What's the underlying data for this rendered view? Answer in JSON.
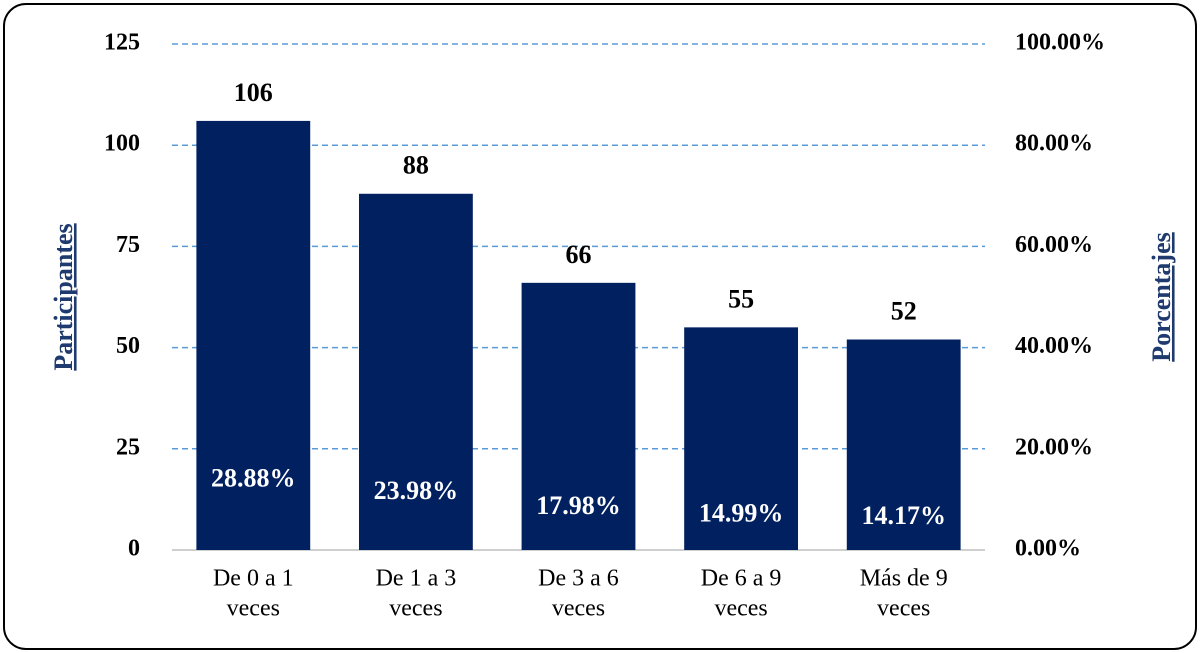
{
  "chart_data": {
    "type": "bar",
    "categories": [
      [
        "De 0 a 1",
        "veces"
      ],
      [
        "De 1 a 3",
        "veces"
      ],
      [
        "De 3 a 6",
        "veces"
      ],
      [
        "De 6 a 9",
        "veces"
      ],
      [
        "Más de 9",
        "veces"
      ]
    ],
    "values": [
      106,
      88,
      66,
      55,
      52
    ],
    "percentages": [
      28.88,
      23.98,
      17.98,
      14.99,
      14.17
    ],
    "percentage_labels": [
      "28.88%",
      "23.98%",
      "17.98%",
      "14.99%",
      "14.17%"
    ],
    "color": "#002060",
    "ylabel": "Participantes",
    "y2label": "Porcentajes",
    "ylim": [
      0,
      125
    ],
    "yticks": [
      0,
      25,
      50,
      75,
      100,
      125
    ],
    "y2lim": [
      0,
      100
    ],
    "y2ticks": [
      {
        "value": 0,
        "label": "0.00%"
      },
      {
        "value": 20,
        "label": "20.00%"
      },
      {
        "value": 40,
        "label": "40.00%"
      },
      {
        "value": 60,
        "label": "60.00%"
      },
      {
        "value": 80,
        "label": "80.00%"
      },
      {
        "value": 100,
        "label": "100.00%"
      }
    ],
    "grid": true
  }
}
